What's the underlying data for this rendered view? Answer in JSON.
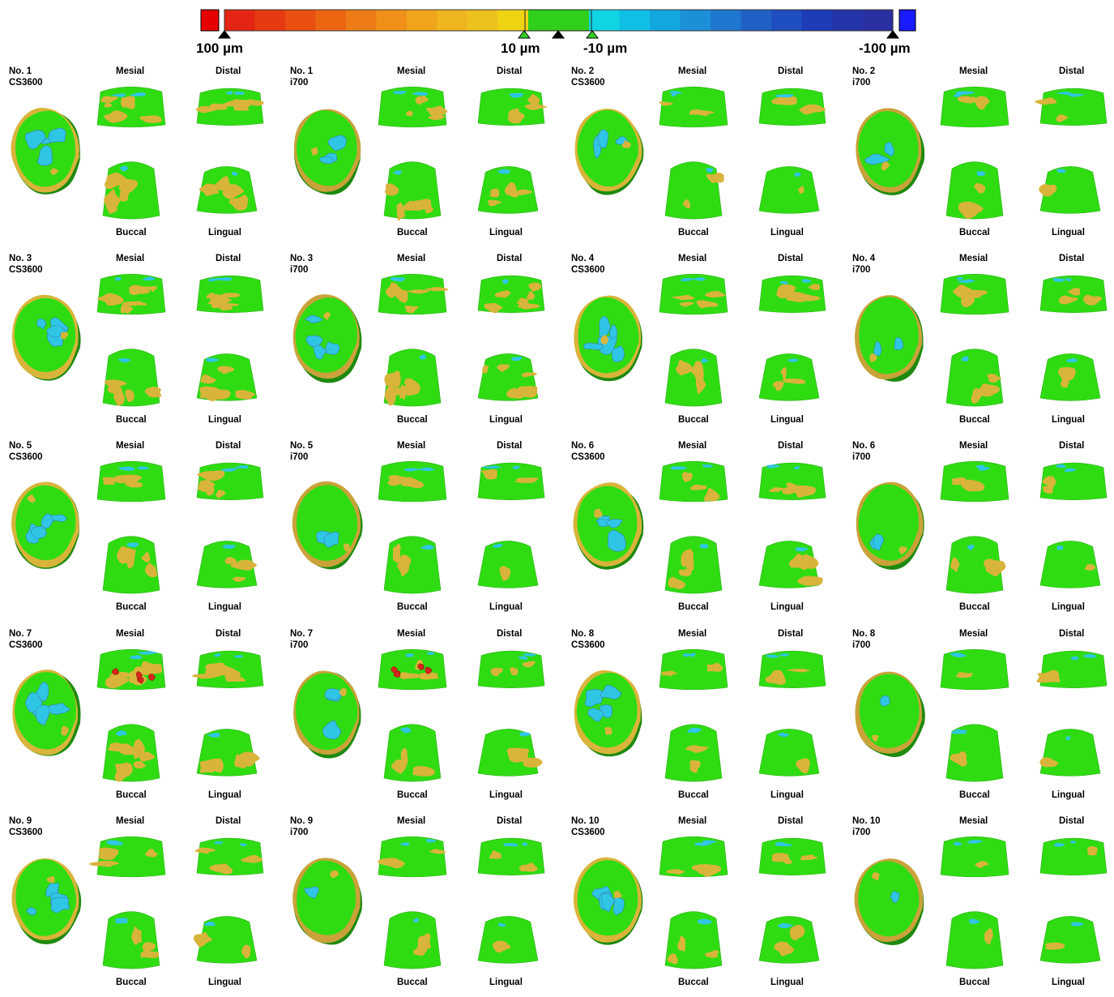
{
  "scale": {
    "labels": [
      "100 µm",
      "10 µm",
      "-10 µm",
      "-100 µm"
    ],
    "colors": [
      "#e52513",
      "#e53a12",
      "#e84f10",
      "#ec6612",
      "#ee7c16",
      "#f09018",
      "#f0a41b",
      "#efb51e",
      "#edc21e",
      "#efd414",
      "#2fcf1c",
      "#2fcf1c",
      "#10d3e4",
      "#10bfe5",
      "#13a7df",
      "#1b8fd8",
      "#1f77d0",
      "#2061c6",
      "#1f4ec0",
      "#1e3cb5",
      "#2434ab",
      "#2a2fa1"
    ],
    "over_color": "#e60000",
    "under_color": "#1a1aff"
  },
  "view_labels": {
    "mesial": "Mesial",
    "distal": "Distal",
    "buccal": "Buccal",
    "lingual": "Lingual"
  },
  "panels": [
    {
      "no": "No. 1",
      "scanner": "CS3600"
    },
    {
      "no": "No. 1",
      "scanner": "i700"
    },
    {
      "no": "No. 2",
      "scanner": "CS3600"
    },
    {
      "no": "No. 2",
      "scanner": "i700"
    },
    {
      "no": "No. 3",
      "scanner": "CS3600"
    },
    {
      "no": "No. 3",
      "scanner": "i700"
    },
    {
      "no": "No. 4",
      "scanner": "CS3600"
    },
    {
      "no": "No. 4",
      "scanner": "i700"
    },
    {
      "no": "No. 5",
      "scanner": "CS3600"
    },
    {
      "no": "No. 5",
      "scanner": "i700"
    },
    {
      "no": "No. 6",
      "scanner": "CS3600"
    },
    {
      "no": "No. 6",
      "scanner": "i700"
    },
    {
      "no": "No. 7",
      "scanner": "CS3600"
    },
    {
      "no": "No. 7",
      "scanner": "i700"
    },
    {
      "no": "No. 8",
      "scanner": "CS3600"
    },
    {
      "no": "No. 8",
      "scanner": "i700"
    },
    {
      "no": "No. 9",
      "scanner": "CS3600"
    },
    {
      "no": "No. 9",
      "scanner": "i700"
    },
    {
      "no": "No. 10",
      "scanner": "CS3600"
    },
    {
      "no": "No. 10",
      "scanner": "i700"
    }
  ],
  "surface_colors": {
    "within_tolerance": "#2fdc12",
    "positive": "#d9b43a",
    "negative": "#2fc6e6",
    "high_positive": "#d8261a"
  }
}
